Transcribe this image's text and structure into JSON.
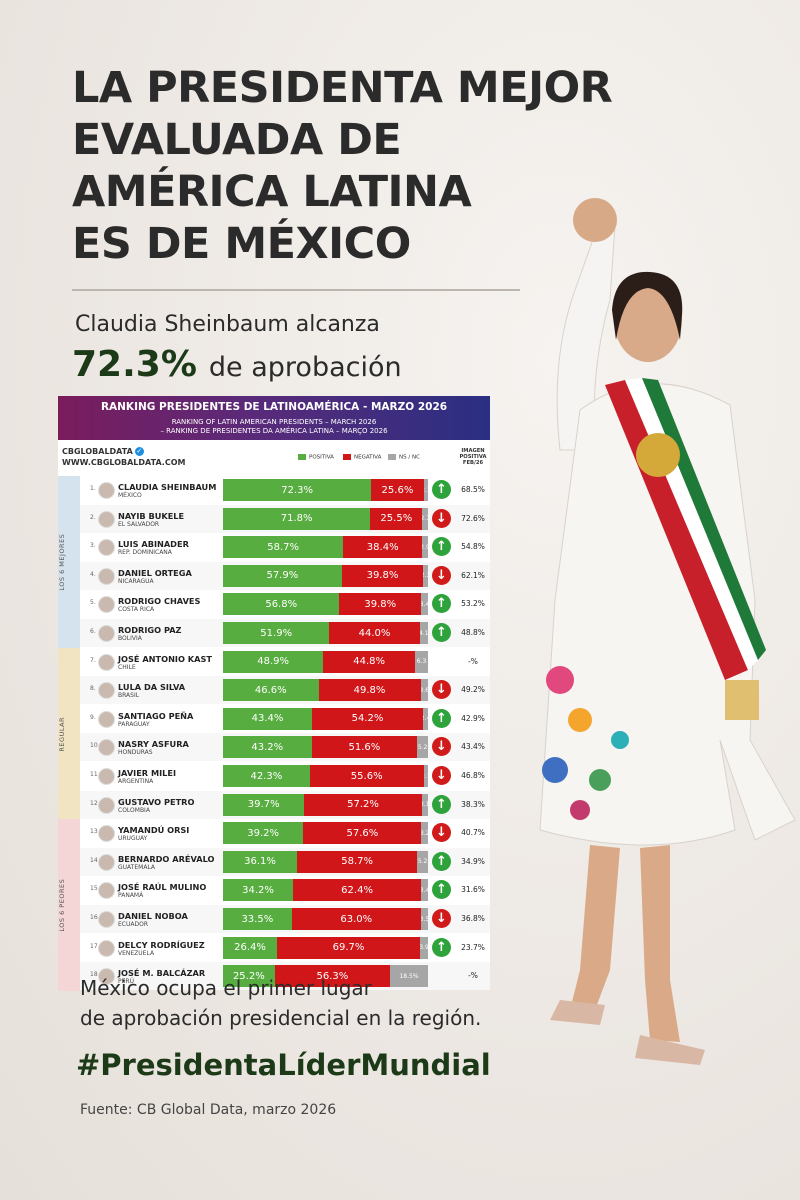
{
  "headline": [
    "LA PRESIDENTA MEJOR",
    "EVALUADA DE",
    "AMÉRICA LATINA",
    "ES DE MÉXICO"
  ],
  "subline": "Claudia Sheinbaum alcanza",
  "big_pct": "72.3%",
  "big_rest": "de aprobación",
  "bottom_line1": "México ocupa el primer lugar",
  "bottom_line2": "de aprobación presidencial en la región.",
  "hashtag": "#PresidentaLíderMundial",
  "source": "Fuente: CB Global Data, marzo 2026",
  "colors": {
    "positive": "#57ad3f",
    "negative": "#d1161a",
    "ns": "#a6a6a6",
    "accent": "#1c3a17"
  },
  "chart_data": {
    "type": "bar",
    "title": "RANKING PRESIDENTES DE LATINOAMÉRICA - MARZO 2026",
    "subtitle_1": "RANKING OF LATIN AMERICAN PRESIDENTS – MARCH 2026",
    "subtitle_2": "– RANKING DE PRESIDENTES DA AMÉRICA LATINA – MARÇO 2026",
    "brand": "CBGLOBALDATA",
    "url": "WWW.CBGLOBALDATA.COM",
    "legend": [
      "POSITIVA",
      "NEGATIVA",
      "NS / NC"
    ],
    "image_header": [
      "IMAGEN",
      "POSITIVA",
      "FEB/26"
    ],
    "groups": [
      {
        "label": "LOS 6 MEJORES",
        "rows": 6,
        "color": "#d5e3ee"
      },
      {
        "label": "REGULAR",
        "rows": 6,
        "color": "#f1e4c3"
      },
      {
        "label": "LOS 6 PEORES",
        "rows": 6,
        "color": "#f4d6d6"
      }
    ],
    "rows": [
      {
        "n": "1.",
        "name": "CLAUDIA SHEINBAUM",
        "country": "MÉXICO",
        "pos": 72.3,
        "neg": 25.6,
        "ns": 2.1,
        "pos_label": "72.3%",
        "neg_label": "25.6%",
        "ns_label": "2.1",
        "trend": "up",
        "img": "68.5%"
      },
      {
        "n": "2.",
        "name": "NAYIB BUKELE",
        "country": "EL SALVADOR",
        "pos": 71.8,
        "neg": 25.5,
        "ns": 2.7,
        "pos_label": "71.8%",
        "neg_label": "25.5%",
        "ns_label": "2.7",
        "trend": "down",
        "img": "72.6%"
      },
      {
        "n": "3.",
        "name": "LUIS ABINADER",
        "country": "REP. DOMINICANA",
        "pos": 58.7,
        "neg": 38.4,
        "ns": 2.9,
        "pos_label": "58.7%",
        "neg_label": "38.4%",
        "ns_label": "2.9",
        "trend": "up",
        "img": "54.8%"
      },
      {
        "n": "4.",
        "name": "DANIEL ORTEGA",
        "country": "NICARAGUA",
        "pos": 57.9,
        "neg": 39.8,
        "ns": 2.3,
        "pos_label": "57.9%",
        "neg_label": "39.8%",
        "ns_label": "2.3",
        "trend": "down",
        "img": "62.1%"
      },
      {
        "n": "5.",
        "name": "RODRIGO CHAVES",
        "country": "COSTA RICA",
        "pos": 56.8,
        "neg": 39.8,
        "ns": 3.4,
        "pos_label": "56.8%",
        "neg_label": "39.8%",
        "ns_label": "3.4",
        "trend": "up",
        "img": "53.2%"
      },
      {
        "n": "6.",
        "name": "RODRIGO PAZ",
        "country": "BOLIVIA",
        "pos": 51.9,
        "neg": 44.0,
        "ns": 4.1,
        "pos_label": "51.9%",
        "neg_label": "44.0%",
        "ns_label": "4.1",
        "trend": "up",
        "img": "48.8%"
      },
      {
        "n": "7.",
        "name": "JOSÉ ANTONIO KAST",
        "country": "CHILE",
        "pos": 48.9,
        "neg": 44.8,
        "ns": 6.3,
        "pos_label": "48.9%",
        "neg_label": "44.8%",
        "ns_label": "6.3",
        "trend": "",
        "img": "-%"
      },
      {
        "n": "8.",
        "name": "LULA DA SILVA",
        "country": "BRASIL",
        "pos": 46.6,
        "neg": 49.8,
        "ns": 3.6,
        "pos_label": "46.6%",
        "neg_label": "49.8%",
        "ns_label": "3.6",
        "trend": "down",
        "img": "49.2%"
      },
      {
        "n": "9.",
        "name": "SANTIAGO PEÑA",
        "country": "PARAGUAY",
        "pos": 43.4,
        "neg": 54.2,
        "ns": 2.4,
        "pos_label": "43.4%",
        "neg_label": "54.2%",
        "ns_label": "2.4",
        "trend": "up",
        "img": "42.9%"
      },
      {
        "n": "10.",
        "name": "NASRY ASFURA",
        "country": "HONDURAS",
        "pos": 43.2,
        "neg": 51.6,
        "ns": 5.2,
        "pos_label": "43.2%",
        "neg_label": "51.6%",
        "ns_label": "5.2",
        "trend": "down",
        "img": "43.4%"
      },
      {
        "n": "11.",
        "name": "JAVIER MILEI",
        "country": "ARGENTINA",
        "pos": 42.3,
        "neg": 55.6,
        "ns": 2.1,
        "pos_label": "42.3%",
        "neg_label": "55.6%",
        "ns_label": "2.1",
        "trend": "down",
        "img": "46.8%"
      },
      {
        "n": "12.",
        "name": "GUSTAVO PETRO",
        "country": "COLOMBIA",
        "pos": 39.7,
        "neg": 57.2,
        "ns": 3.1,
        "pos_label": "39.7%",
        "neg_label": "57.2%",
        "ns_label": "3.1",
        "trend": "up",
        "img": "38.3%"
      },
      {
        "n": "13.",
        "name": "YAMANDÚ ORSI",
        "country": "URUGUAY",
        "pos": 39.2,
        "neg": 57.6,
        "ns": 3.2,
        "pos_label": "39.2%",
        "neg_label": "57.6%",
        "ns_label": "3.2",
        "trend": "down",
        "img": "40.7%"
      },
      {
        "n": "14.",
        "name": "BERNARDO ARÉVALO",
        "country": "GUATEMALA",
        "pos": 36.1,
        "neg": 58.7,
        "ns": 5.2,
        "pos_label": "36.1%",
        "neg_label": "58.7%",
        "ns_label": "5.2",
        "trend": "up",
        "img": "34.9%"
      },
      {
        "n": "15.",
        "name": "JOSÉ RAÚL MULINO",
        "country": "PANAMÁ",
        "pos": 34.2,
        "neg": 62.4,
        "ns": 3.4,
        "pos_label": "34.2%",
        "neg_label": "62.4%",
        "ns_label": "3.4",
        "trend": "up",
        "img": "31.6%"
      },
      {
        "n": "16.",
        "name": "DANIEL NOBOA",
        "country": "ECUADOR",
        "pos": 33.5,
        "neg": 63.0,
        "ns": 3.5,
        "pos_label": "33.5%",
        "neg_label": "63.0%",
        "ns_label": "3.5",
        "trend": "down",
        "img": "36.8%"
      },
      {
        "n": "17.",
        "name": "DELCY RODRÍGUEZ",
        "country": "VENEZUELA",
        "pos": 26.4,
        "neg": 69.7,
        "ns": 3.9,
        "pos_label": "26.4%",
        "neg_label": "69.7%",
        "ns_label": "3.9",
        "trend": "up",
        "img": "23.7%"
      },
      {
        "n": "18.",
        "name": "JOSÉ M. BALCÁZAR",
        "country": "PERÚ",
        "pos": 25.2,
        "neg": 56.3,
        "ns": 18.5,
        "pos_label": "25.2%",
        "neg_label": "56.3%",
        "ns_label": "18.5%",
        "trend": "",
        "img": "-%"
      }
    ]
  }
}
